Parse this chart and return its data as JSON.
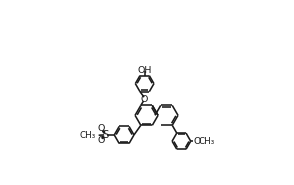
{
  "bg_color": "#ffffff",
  "line_color": "#1a1a1a",
  "line_width": 1.15,
  "font_size": 6.8,
  "fig_width": 2.94,
  "fig_height": 1.85,
  "dpi": 100,
  "xlim": [
    -0.5,
    7.0
  ],
  "ylim": [
    -1.2,
    4.0
  ]
}
